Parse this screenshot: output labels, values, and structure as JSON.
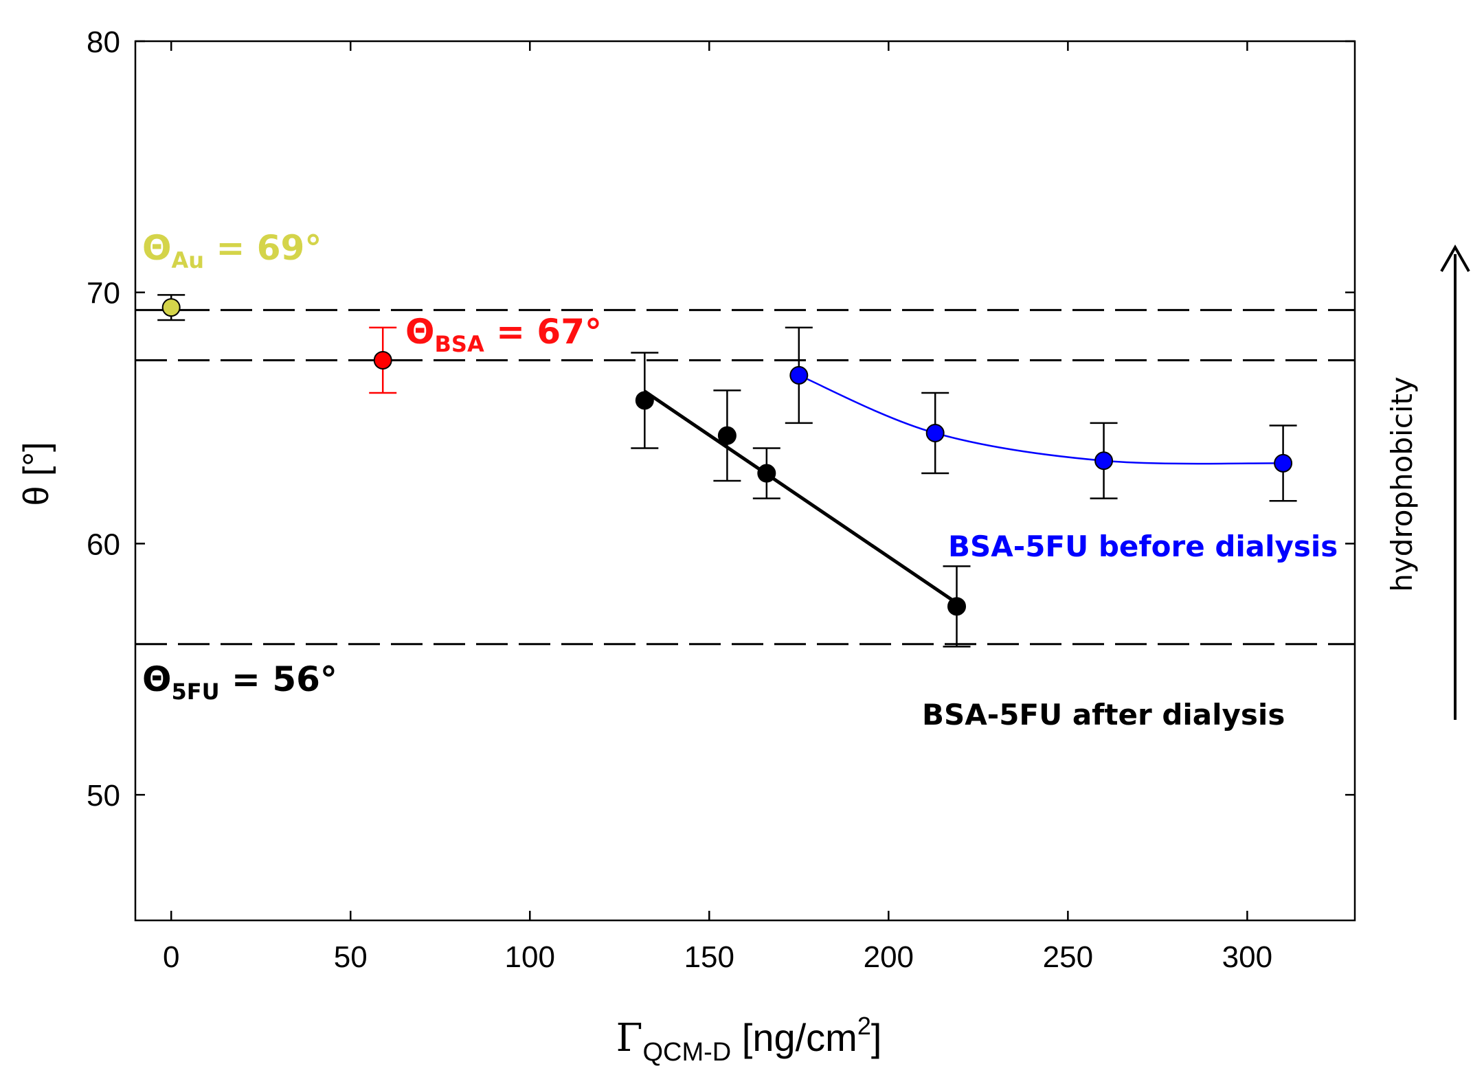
{
  "chart_data": {
    "type": "scatter",
    "title": "",
    "xlabel": {
      "symbol": "Γ",
      "subscript": "QCM-D",
      "unit": " [ng/cm",
      "sup": "2",
      "close": "]"
    },
    "ylabel": "θ [°]",
    "xlim": [
      -10,
      330
    ],
    "ylim": [
      45,
      80
    ],
    "xticks": [
      0,
      50,
      100,
      150,
      200,
      250,
      300
    ],
    "yticks": [
      50,
      60,
      70,
      80
    ],
    "reference_lines": [
      {
        "name": "Au",
        "y": 69.3,
        "color": "#000000",
        "style": "dashed"
      },
      {
        "name": "BSA",
        "y": 67.3,
        "color": "#000000",
        "style": "dashed"
      },
      {
        "name": "5FU",
        "y": 56.0,
        "color": "#000000",
        "style": "dashed"
      }
    ],
    "series": [
      {
        "name": "Au",
        "color": "#d4d44a",
        "points": [
          {
            "x": 0,
            "y": 69.4,
            "err": 0.5
          }
        ]
      },
      {
        "name": "BSA",
        "color": "#ff0000",
        "points": [
          {
            "x": 59,
            "y": 67.3,
            "err": 1.3
          }
        ]
      },
      {
        "name": "BSA-5FU after dialysis",
        "color": "#000000",
        "line": "linear_fit",
        "points": [
          {
            "x": 132,
            "y": 65.7,
            "err": 1.9
          },
          {
            "x": 155,
            "y": 64.3,
            "err": 1.8
          },
          {
            "x": 166,
            "y": 62.8,
            "err": 1.0
          },
          {
            "x": 219,
            "y": 57.5,
            "err": 1.6
          }
        ]
      },
      {
        "name": "BSA-5FU before dialysis",
        "color": "#0000ff",
        "line": "smooth",
        "points": [
          {
            "x": 175,
            "y": 66.7,
            "err": 1.9
          },
          {
            "x": 213,
            "y": 64.4,
            "err": 1.6
          },
          {
            "x": 260,
            "y": 63.3,
            "err": 1.5
          },
          {
            "x": 310,
            "y": 63.2,
            "err": 1.5
          }
        ]
      }
    ],
    "annotations": {
      "au": {
        "base": "Θ",
        "sub": "Au",
        "rest": " = 69°",
        "color": "#d4d44a"
      },
      "bsa": {
        "base": "Θ",
        "sub": "BSA",
        "rest": " = 67°",
        "color": "#ff1010"
      },
      "fu": {
        "base": "Θ",
        "sub": "5FU",
        "rest": " = 56°",
        "color": "#000000"
      }
    },
    "labels": {
      "before": "BSA-5FU before dialysis",
      "after": "BSA-5FU after dialysis",
      "hydrophobicity": "hydrophobicity"
    }
  }
}
